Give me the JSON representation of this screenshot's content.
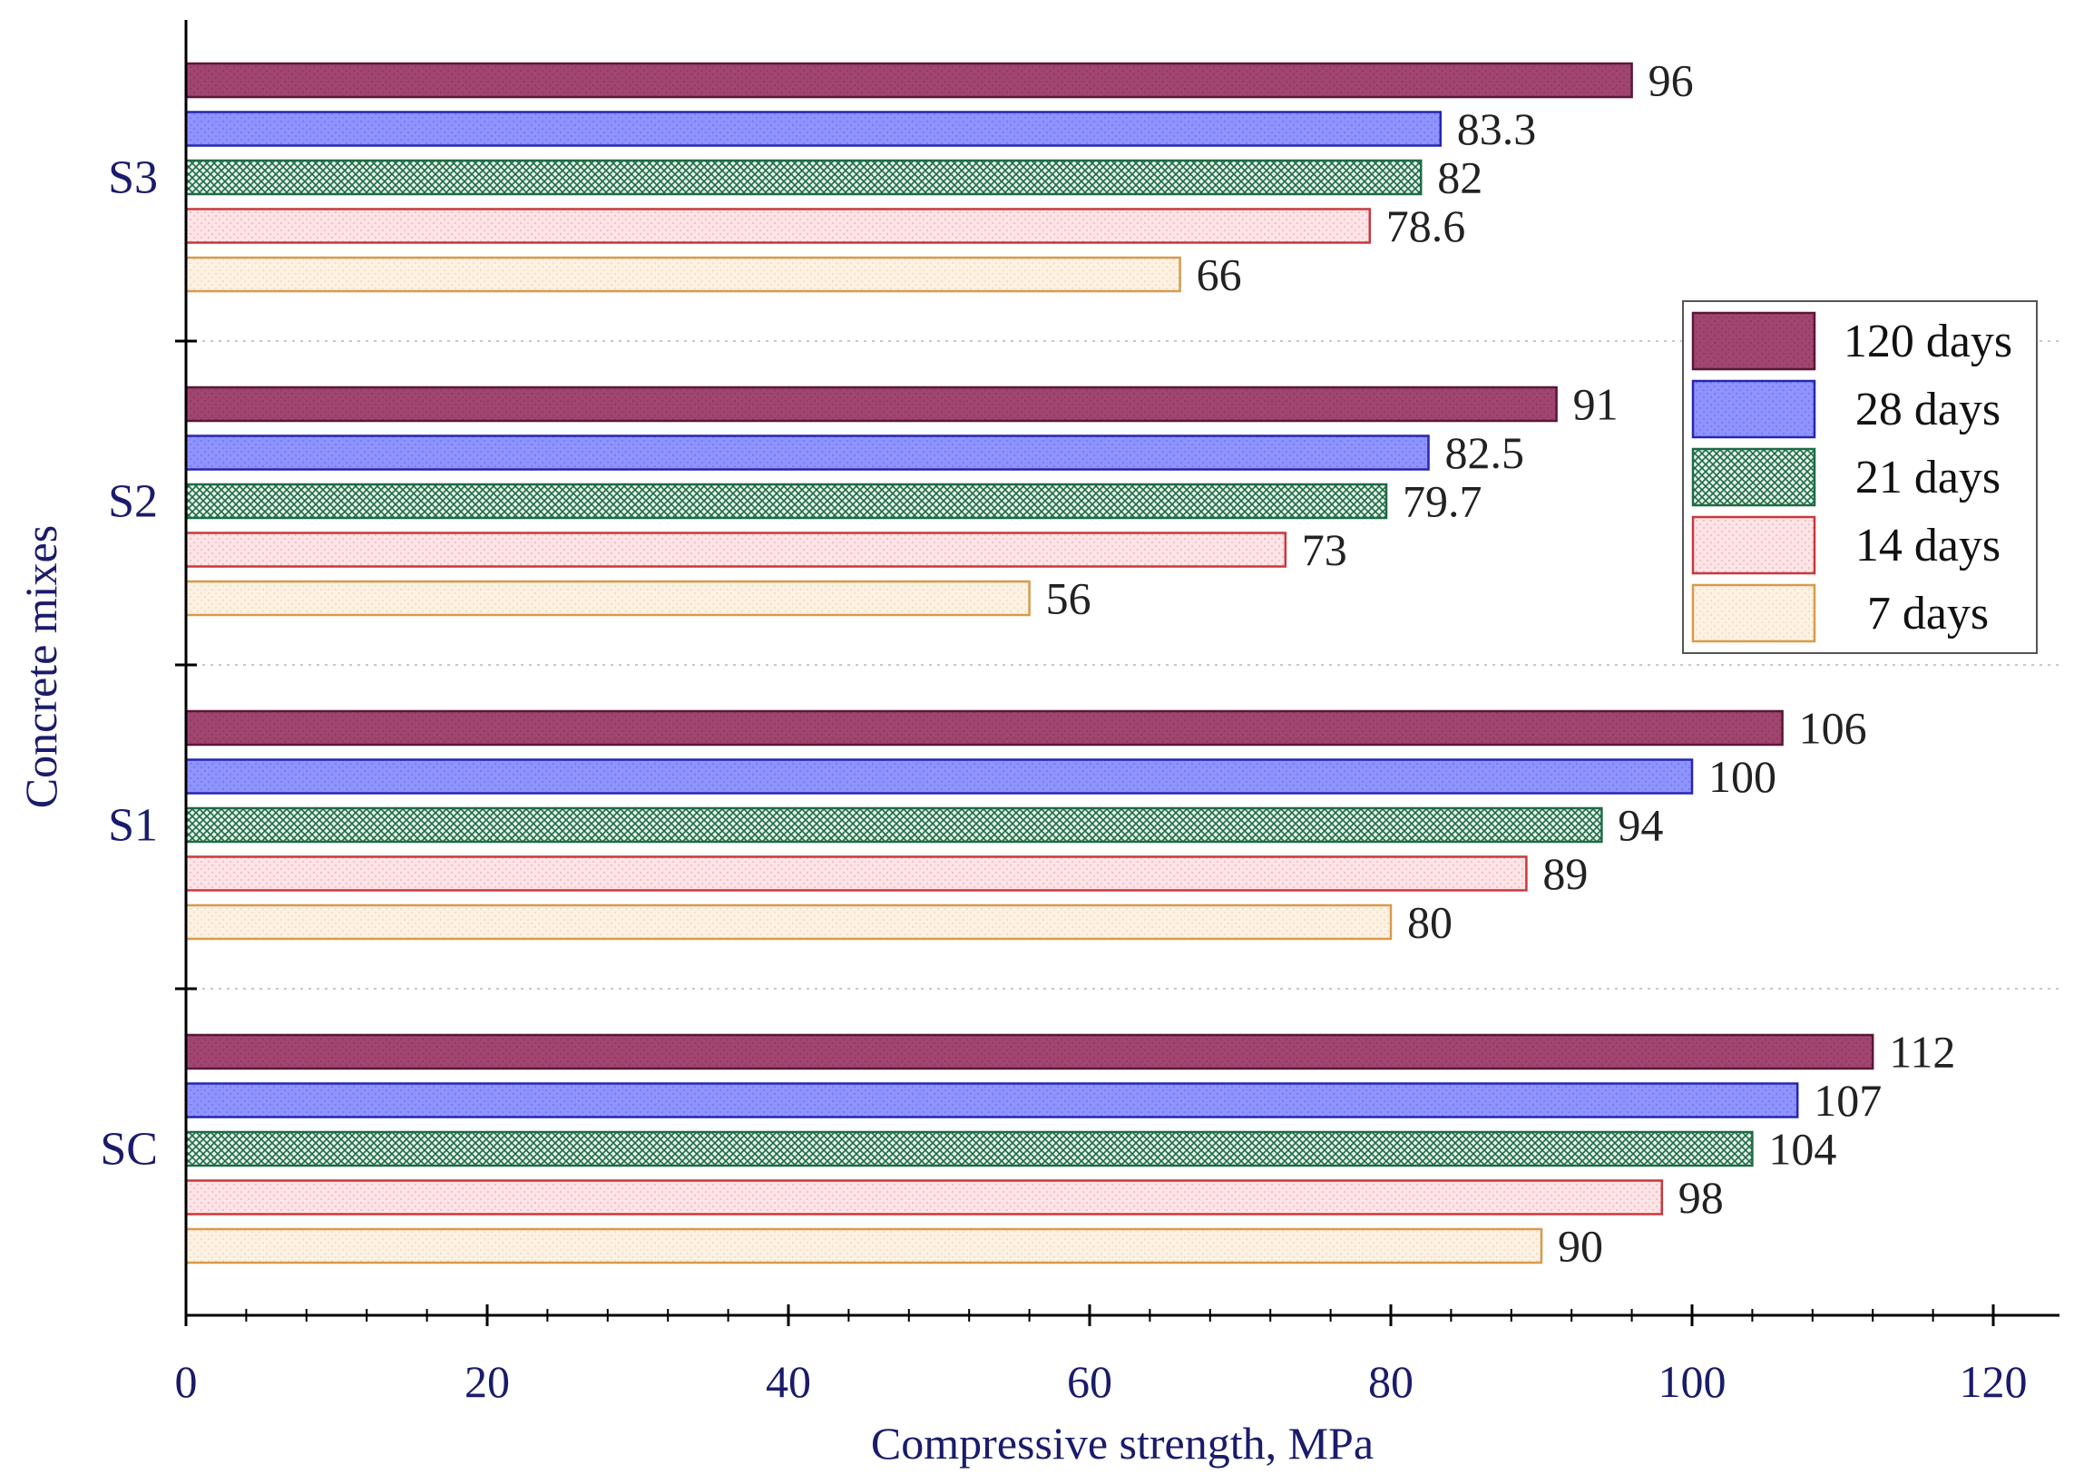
{
  "chart_data": {
    "type": "bar",
    "orientation": "horizontal",
    "title": "",
    "xlabel": "Compressive strength, MPa",
    "ylabel": "Concrete mixes",
    "xlim": [
      0,
      120
    ],
    "x_ticks": [
      "0",
      "20",
      "40",
      "60",
      "80",
      "100",
      "120"
    ],
    "x_minor_step": 4,
    "categories": [
      "S3",
      "S2",
      "S1",
      "SC"
    ],
    "series": [
      {
        "name": "120 days",
        "values": [
          96,
          91,
          106,
          112
        ],
        "labels": [
          "96",
          "91",
          "106",
          "112"
        ],
        "fill": "#a0456f",
        "stroke": "#5a1738",
        "pattern": "dots"
      },
      {
        "name": "28 days",
        "values": [
          83.3,
          82.5,
          100,
          107
        ],
        "labels": [
          "83.3",
          "82.5",
          "100",
          "107"
        ],
        "fill": "#8f93ff",
        "stroke": "#2626b0",
        "pattern": "dots"
      },
      {
        "name": "21 days",
        "values": [
          82,
          79.7,
          94,
          104
        ],
        "labels": [
          "82",
          "79.7",
          "94",
          "104"
        ],
        "fill": "#e6f1ea",
        "stroke": "#1e6b45",
        "pattern": "crosshatch"
      },
      {
        "name": "14 days",
        "values": [
          78.6,
          73,
          89,
          98
        ],
        "labels": [
          "78.6",
          "73",
          "89",
          "98"
        ],
        "fill": "#fde4e6",
        "stroke": "#c8383d",
        "pattern": "dots"
      },
      {
        "name": "7 days",
        "values": [
          66,
          56,
          80,
          90
        ],
        "labels": [
          "66",
          "56",
          "80",
          "90"
        ],
        "fill": "#fcf1e2",
        "stroke": "#d89a4c",
        "pattern": "dots"
      }
    ],
    "legend": {
      "placement": "right",
      "order": [
        "120 days",
        "28 days",
        "21 days",
        "14 days",
        "7 days"
      ]
    },
    "grid": false,
    "category_separators": "dotted"
  }
}
